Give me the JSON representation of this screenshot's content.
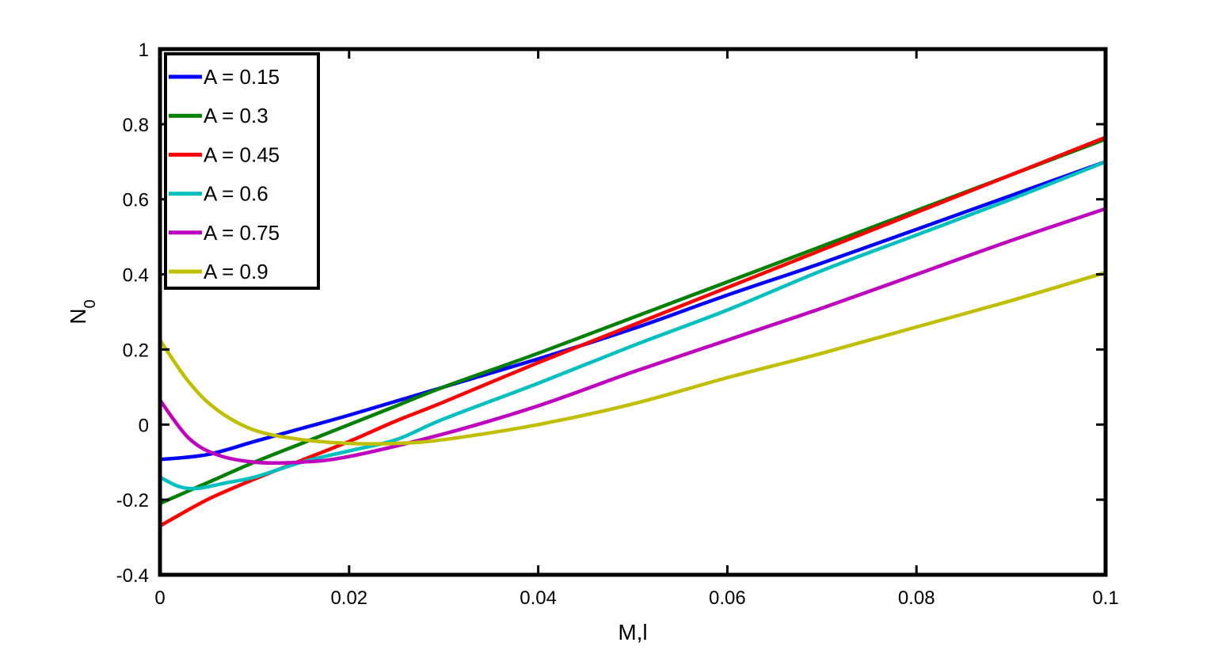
{
  "chart_data": {
    "type": "line",
    "title": "",
    "xlabel": "M,l",
    "ylabel_base": "N",
    "ylabel_sub": "0",
    "xlim": [
      0,
      0.1
    ],
    "ylim": [
      -0.4,
      1
    ],
    "grid": false,
    "legend_position": "top-left",
    "x_ticks": [
      0,
      0.02,
      0.04,
      0.06,
      0.08,
      0.1
    ],
    "x_tick_labels": [
      "0",
      "0.02",
      "0.04",
      "0.06",
      "0.08",
      "0.1"
    ],
    "y_ticks": [
      -0.4,
      -0.2,
      0,
      0.2,
      0.4,
      0.6,
      0.8,
      1
    ],
    "y_tick_labels": [
      "-0.4",
      "-0.2",
      "0",
      "0.2",
      "0.4",
      "0.6",
      "0.8",
      "1"
    ],
    "series": [
      {
        "name": "A = 0.15",
        "color": "#0000ff",
        "x": [
          0,
          0.005,
          0.01,
          0.015,
          0.02,
          0.03,
          0.04,
          0.05,
          0.06,
          0.07,
          0.08,
          0.09,
          0.1
        ],
        "y": [
          -0.093,
          -0.08,
          -0.045,
          -0.01,
          0.025,
          0.1,
          0.175,
          0.255,
          0.345,
          0.43,
          0.52,
          0.61,
          0.7
        ]
      },
      {
        "name": "A = 0.3",
        "color": "#008000",
        "x": [
          0,
          0.005,
          0.01,
          0.015,
          0.02,
          0.025,
          0.03,
          0.04,
          0.05,
          0.06,
          0.07,
          0.08,
          0.09,
          0.1
        ],
        "y": [
          -0.21,
          -0.155,
          -0.1,
          -0.05,
          0.0,
          0.05,
          0.1,
          0.19,
          0.285,
          0.38,
          0.475,
          0.57,
          0.665,
          0.76
        ]
      },
      {
        "name": "A = 0.45",
        "color": "#ff0000",
        "x": [
          0,
          0.005,
          0.01,
          0.015,
          0.02,
          0.025,
          0.03,
          0.04,
          0.05,
          0.06,
          0.07,
          0.08,
          0.09,
          0.1
        ],
        "y": [
          -0.27,
          -0.2,
          -0.145,
          -0.095,
          -0.045,
          0.01,
          0.06,
          0.165,
          0.265,
          0.365,
          0.465,
          0.565,
          0.665,
          0.765
        ]
      },
      {
        "name": "A = 0.6",
        "color": "#00bfbf",
        "x": [
          0,
          0.002,
          0.004,
          0.007,
          0.01,
          0.015,
          0.02,
          0.025,
          0.03,
          0.04,
          0.05,
          0.06,
          0.07,
          0.08,
          0.09,
          0.1
        ],
        "y": [
          -0.14,
          -0.165,
          -0.17,
          -0.155,
          -0.14,
          -0.1,
          -0.07,
          -0.04,
          0.015,
          0.11,
          0.21,
          0.305,
          0.41,
          0.505,
          0.6,
          0.7
        ]
      },
      {
        "name": "A = 0.75",
        "color": "#bf00bf",
        "x": [
          0,
          0.003,
          0.006,
          0.01,
          0.015,
          0.02,
          0.03,
          0.04,
          0.05,
          0.06,
          0.07,
          0.08,
          0.09,
          0.1
        ],
        "y": [
          0.065,
          -0.035,
          -0.08,
          -0.1,
          -0.1,
          -0.085,
          -0.025,
          0.05,
          0.14,
          0.225,
          0.31,
          0.4,
          0.49,
          0.575
        ]
      },
      {
        "name": "A = 0.9",
        "color": "#bfbf00",
        "x": [
          0,
          0.003,
          0.006,
          0.01,
          0.015,
          0.02,
          0.025,
          0.03,
          0.04,
          0.05,
          0.06,
          0.07,
          0.08,
          0.09,
          0.1
        ],
        "y": [
          0.225,
          0.115,
          0.04,
          -0.015,
          -0.04,
          -0.05,
          -0.05,
          -0.04,
          0.0,
          0.055,
          0.125,
          0.19,
          0.26,
          0.33,
          0.405
        ]
      }
    ]
  }
}
